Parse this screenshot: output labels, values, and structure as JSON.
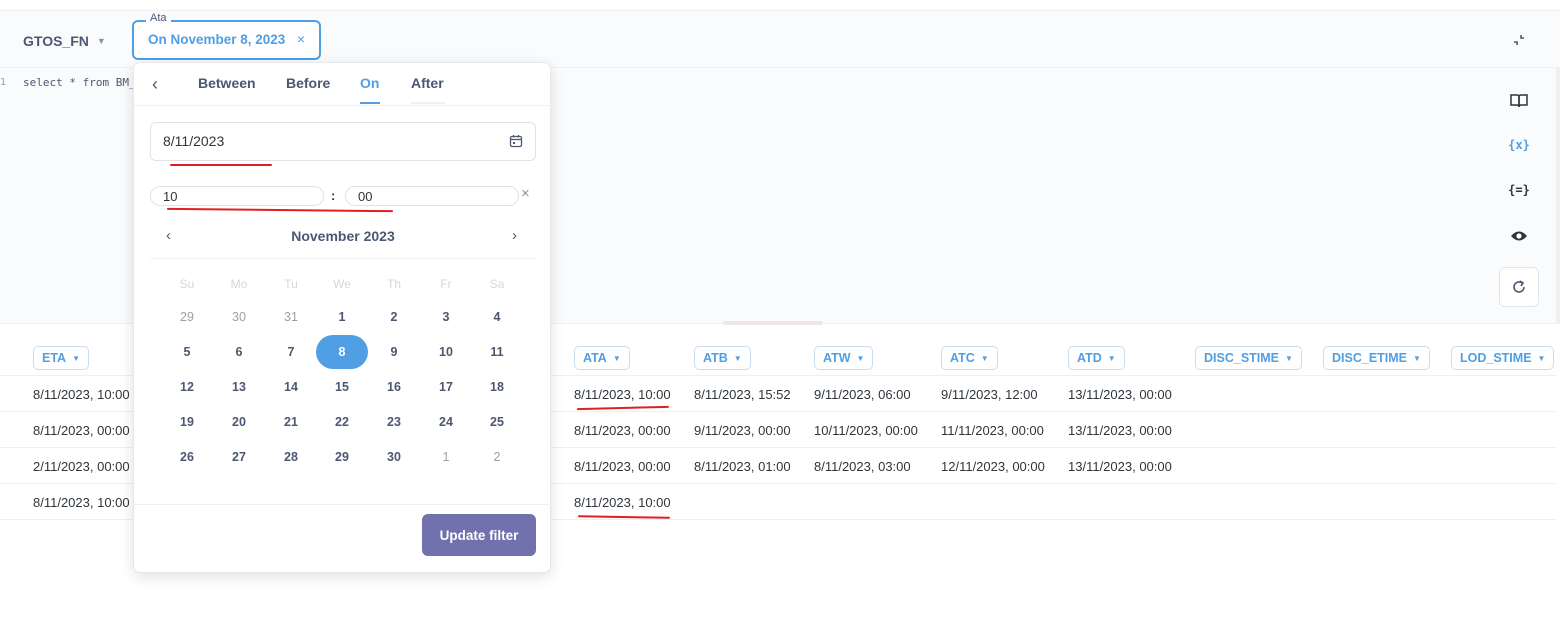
{
  "topbar": {
    "database": "GTOS_FN",
    "filter_label": "Ata",
    "filter_value": "On November 8, 2023",
    "filter_clear": "×",
    "collapse_icon": "collapse-icon"
  },
  "editor": {
    "line_number": "1",
    "code": "select * from BM_"
  },
  "sidebar": {
    "icons": [
      "book-icon",
      "variables-icon",
      "snippets-icon",
      "preview-icon",
      "refresh-icon"
    ],
    "variables_text": "{x}",
    "snippets_text": "{=}"
  },
  "popover": {
    "tabs": [
      "Between",
      "Before",
      "On",
      "After"
    ],
    "active_tab": "On",
    "date_value": "8/11/2023",
    "hour_value": "10",
    "minute_value": "00",
    "colon": ":",
    "clear_time": "×",
    "month_title": "November 2023",
    "prev_month": "‹",
    "next_month": "›",
    "weekdays": [
      "Su",
      "Mo",
      "Tu",
      "We",
      "Th",
      "Fr",
      "Sa"
    ],
    "weeks": [
      [
        "29",
        "30",
        "31",
        "1",
        "2",
        "3",
        "4"
      ],
      [
        "5",
        "6",
        "7",
        "8",
        "9",
        "10",
        "11"
      ],
      [
        "12",
        "13",
        "14",
        "15",
        "16",
        "17",
        "18"
      ],
      [
        "19",
        "20",
        "21",
        "22",
        "23",
        "24",
        "25"
      ],
      [
        "26",
        "27",
        "28",
        "29",
        "30",
        "1",
        "2"
      ]
    ],
    "selected_day": "8",
    "update_button": "Update filter"
  },
  "table": {
    "columns": [
      "ETA",
      "ATA",
      "ATB",
      "ATW",
      "ATC",
      "ATD",
      "DISC_STIME",
      "DISC_ETIME",
      "LOD_STIME"
    ],
    "rows": [
      {
        "ETA": "8/11/2023, 10:00",
        "ATA": "8/11/2023, 10:00",
        "ATB": "8/11/2023, 15:52",
        "ATW": "9/11/2023, 06:00",
        "ATC": "9/11/2023, 12:00",
        "ATD": "13/11/2023, 00:00"
      },
      {
        "ETA": "8/11/2023, 00:00",
        "ATA": "8/11/2023, 00:00",
        "ATB": "9/11/2023, 00:00",
        "ATW": "10/11/2023, 00:00",
        "ATC": "11/11/2023, 00:00",
        "ATD": "13/11/2023, 00:00"
      },
      {
        "ETA": "2/11/2023, 00:00",
        "ATA": "8/11/2023, 00:00",
        "ATB": "8/11/2023, 01:00",
        "ATW": "8/11/2023, 03:00",
        "ATC": "12/11/2023, 00:00",
        "ATD": "13/11/2023, 00:00"
      },
      {
        "ETA": "8/11/2023, 10:00",
        "ATA": "8/11/2023, 10:00",
        "ATB": "",
        "ATW": "",
        "ATC": "",
        "ATD": ""
      }
    ]
  },
  "colors": {
    "accent": "#509ee3",
    "button": "#7172ad",
    "annotation": "#e02020"
  }
}
